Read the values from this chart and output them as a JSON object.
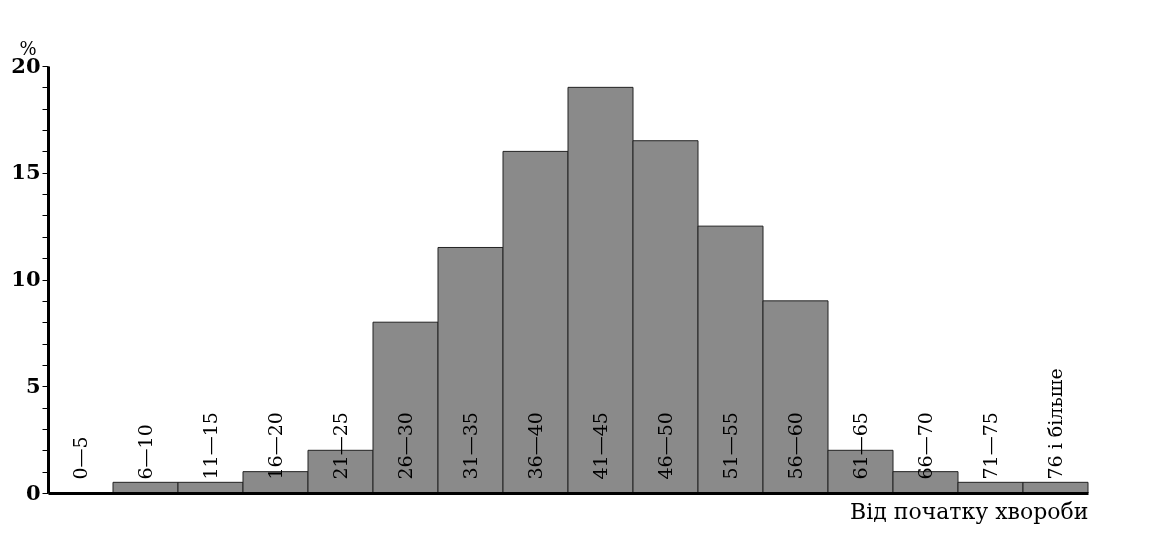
{
  "chart_data": {
    "type": "bar",
    "ylabel": "%",
    "xlabel": "Від початку хвороби",
    "categories": [
      "0—5",
      "6—10",
      "11—15",
      "16—20",
      "21—25",
      "26—30",
      "31—35",
      "36—40",
      "41—45",
      "46—50",
      "51—55",
      "56—60",
      "61—65",
      "66—70",
      "71—75",
      "76 і більше"
    ],
    "values": [
      0,
      0.5,
      0.5,
      1,
      2,
      8,
      11.5,
      16,
      19,
      16.5,
      12.5,
      9,
      2,
      1,
      0.5,
      0.5
    ],
    "color": "#8a8a8a",
    "ylim": [
      0,
      20
    ],
    "yticks": [
      0,
      {
        "value": 1,
        "label": null
      },
      {
        "value": 2,
        "label": null
      },
      {
        "value": 3,
        "label": null
      },
      {
        "value": 4,
        "label": null
      },
      5,
      {
        "value": 6,
        "label": null
      },
      {
        "value": 7,
        "label": null
      },
      {
        "value": 8,
        "label": null
      },
      {
        "value": 9,
        "label": null
      },
      10,
      {
        "value": 11,
        "label": null
      },
      {
        "value": 12,
        "label": null
      },
      {
        "value": 13,
        "label": null
      },
      {
        "value": 14,
        "label": null
      },
      15,
      {
        "value": 16,
        "label": null
      },
      {
        "value": 17,
        "label": null
      },
      {
        "value": 18,
        "label": null
      },
      {
        "value": 19,
        "label": null
      },
      20
    ],
    "grid": false
  }
}
